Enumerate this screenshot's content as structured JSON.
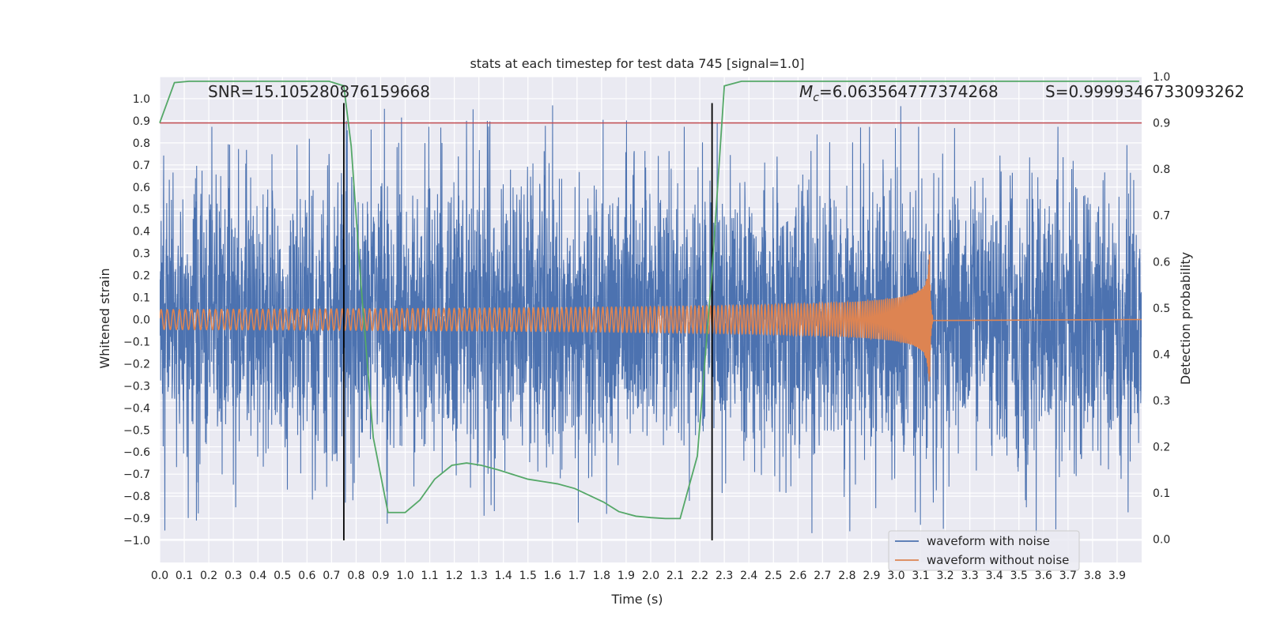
{
  "chart_data": {
    "type": "line",
    "title": "stats at each timestep for test data 745 [signal=1.0]",
    "xlabel": "Time (s)",
    "ylabel_left": "Whitened strain",
    "ylabel_right": "Detection probability",
    "xlim": [
      0.0,
      4.0
    ],
    "ylim_left": [
      -1.1,
      1.1
    ],
    "ylim_right": [
      -0.05,
      1.0
    ],
    "x_ticks": [
      "0.0",
      "0.1",
      "0.2",
      "0.3",
      "0.4",
      "0.5",
      "0.6",
      "0.7",
      "0.8",
      "0.9",
      "1.0",
      "1.1",
      "1.2",
      "1.3",
      "1.4",
      "1.5",
      "1.6",
      "1.7",
      "1.8",
      "1.9",
      "2.0",
      "2.1",
      "2.2",
      "2.3",
      "2.4",
      "2.5",
      "2.6",
      "2.7",
      "2.8",
      "2.9",
      "3.0",
      "3.1",
      "3.2",
      "3.3",
      "3.4",
      "3.5",
      "3.6",
      "3.7",
      "3.8",
      "3.9"
    ],
    "y_ticks_left": [
      "1.0",
      "0.9",
      "0.8",
      "0.7",
      "0.6",
      "0.5",
      "0.4",
      "0.3",
      "0.2",
      "0.1",
      "0.0",
      "−0.1",
      "−0.2",
      "−0.3",
      "−0.4",
      "−0.5",
      "−0.6",
      "−0.7",
      "−0.8",
      "−0.9",
      "−1.0"
    ],
    "y_ticks_right": [
      "1.0",
      "0.9",
      "0.8",
      "0.7",
      "0.6",
      "0.5",
      "0.4",
      "0.3",
      "0.2",
      "0.1",
      "0.0"
    ],
    "grid": true,
    "legend": {
      "placement": "lower-right",
      "entries": [
        {
          "label": "waveform with noise",
          "color": "#4c72b0"
        },
        {
          "label": "waveform without noise",
          "color": "#dd8452"
        }
      ]
    },
    "annotations": {
      "snr": "SNR=15.105280876159668",
      "mc_symbol": "M",
      "mc_subscript": "c",
      "mc_value": "=6.063564777374268",
      "s": "S=0.9999346733093262"
    },
    "threshold_line": {
      "value": 0.9,
      "axis": "right",
      "color": "#c44e52"
    },
    "vertical_lines": [
      {
        "x": 0.75,
        "color": "#000000"
      },
      {
        "x": 2.25,
        "color": "#000000"
      }
    ],
    "series": [
      {
        "name": "waveform with noise",
        "axis": "left",
        "color": "#4c72b0",
        "kind": "noise",
        "x_range": [
          0.0,
          4.0
        ],
        "sigma": 0.32,
        "peak_range": [
          -0.97,
          0.97
        ],
        "notable_peaks": [
          {
            "x": 0.52,
            "y": 0.93
          },
          {
            "x": 0.69,
            "y": 0.75
          },
          {
            "x": 0.76,
            "y": 0.9
          },
          {
            "x": 1.15,
            "y": 0.8
          },
          {
            "x": 1.25,
            "y": 0.9
          },
          {
            "x": 1.6,
            "y": 0.97
          },
          {
            "x": 0.15,
            "y": -0.91
          },
          {
            "x": 0.31,
            "y": -0.85
          },
          {
            "x": 0.52,
            "y": -0.77
          },
          {
            "x": 1.35,
            "y": -0.84
          },
          {
            "x": 1.82,
            "y": -0.88
          },
          {
            "x": 3.53,
            "y": -0.85
          },
          {
            "x": 3.57,
            "y": -0.97
          },
          {
            "x": 3.65,
            "y": -0.95
          },
          {
            "x": 3.94,
            "y": 0.79
          }
        ]
      },
      {
        "name": "waveform without noise",
        "axis": "left",
        "color": "#dd8452",
        "kind": "chirp",
        "x_range": [
          0.0,
          3.15
        ],
        "merger_time": 3.135,
        "amplitude_start": 0.045,
        "amplitude_at_merger": 0.38,
        "post_merger_value": 0.0,
        "cycles_in_first_second": 40
      },
      {
        "name": "detection probability",
        "axis": "right",
        "color": "#55a868",
        "x": [
          0.0,
          0.06,
          0.12,
          0.25,
          0.5,
          0.69,
          0.75,
          0.78,
          0.82,
          0.87,
          0.93,
          1.0,
          1.06,
          1.12,
          1.19,
          1.25,
          1.31,
          1.38,
          1.44,
          1.5,
          1.56,
          1.62,
          1.69,
          1.75,
          1.81,
          1.87,
          1.94,
          2.0,
          2.06,
          2.12,
          2.19,
          2.25,
          2.3,
          2.37,
          2.5,
          3.0,
          3.5,
          3.99
        ],
        "y": [
          0.9,
          0.987,
          0.99,
          0.99,
          0.99,
          0.99,
          0.98,
          0.85,
          0.55,
          0.22,
          0.058,
          0.058,
          0.085,
          0.13,
          0.16,
          0.165,
          0.16,
          0.15,
          0.14,
          0.13,
          0.125,
          0.12,
          0.11,
          0.095,
          0.08,
          0.06,
          0.05,
          0.047,
          0.045,
          0.045,
          0.18,
          0.58,
          0.98,
          0.99,
          0.99,
          0.99,
          0.99,
          0.99
        ]
      }
    ]
  }
}
